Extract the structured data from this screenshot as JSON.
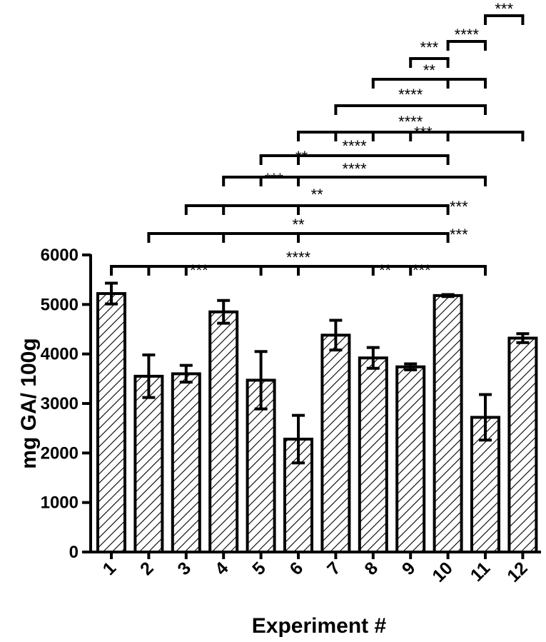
{
  "chart_data": {
    "type": "bar",
    "xlabel": "Experiment #",
    "ylabel": "mg GA/ 100g",
    "ylim": [
      0,
      6000
    ],
    "yticks": [
      0,
      1000,
      2000,
      3000,
      4000,
      5000,
      6000
    ],
    "categories": [
      "1",
      "2",
      "3",
      "4",
      "5",
      "6",
      "7",
      "8",
      "9",
      "10",
      "11",
      "12"
    ],
    "values": [
      5220,
      3550,
      3600,
      4850,
      3470,
      2280,
      4380,
      3920,
      3740,
      5180,
      2720,
      4320
    ],
    "errors": [
      210,
      430,
      170,
      230,
      580,
      480,
      300,
      210,
      60,
      20,
      460,
      90
    ],
    "bar_fill": "diagonal-hatch",
    "bar_color": "#000000",
    "grid": false,
    "legend": "none",
    "significance": [
      {
        "from": "11",
        "to": "12",
        "stars": "***",
        "ticks": [
          "11",
          "12"
        ]
      },
      {
        "from": "10",
        "to": "11",
        "stars": "****",
        "ticks": [
          "10",
          "11"
        ]
      },
      {
        "from": "9",
        "to": "10",
        "stars": "***",
        "ticks": [
          "9",
          "10"
        ]
      },
      {
        "from": "8",
        "to": "11",
        "stars": "**",
        "ticks": [
          "8",
          "10",
          "11"
        ]
      },
      {
        "from": "7",
        "to": "11",
        "stars": "****",
        "ticks": [
          "7",
          "11"
        ]
      },
      {
        "from": "6",
        "to": "12",
        "stars": "****",
        "ticks": [
          "6",
          "7",
          "8",
          "9",
          "10",
          "12"
        ]
      },
      {
        "from": "5",
        "to": "10",
        "stars": "****",
        "ticks": [
          "5",
          "6",
          "10"
        ]
      },
      {
        "from": "4",
        "to": "11",
        "stars": "****",
        "ticks": [
          "4",
          "5",
          "6",
          "11"
        ]
      },
      {
        "from": "3",
        "to": "10",
        "stars": "**",
        "ticks": [
          "3",
          "4",
          "6",
          "10"
        ]
      },
      {
        "from": "2",
        "to": "10",
        "stars": "**",
        "ticks": [
          "2",
          "4",
          "6",
          "10"
        ]
      },
      {
        "from": "1",
        "to": "11",
        "stars": "****",
        "ticks": [
          "1",
          "2",
          "3",
          "5",
          "6",
          "8",
          "9",
          "11"
        ]
      }
    ],
    "side_labels": [
      {
        "bar": "9",
        "text": "***",
        "bracket": "6–12"
      },
      {
        "bar": "6",
        "text": "**",
        "bracket": "5–10"
      },
      {
        "bar": "5",
        "text": "***",
        "bracket": "4–11"
      },
      {
        "bar": "10",
        "text": "***",
        "bracket": "3–10"
      },
      {
        "bar": "10",
        "text": "***",
        "bracket": "2–10"
      },
      {
        "bar": "3",
        "text": "***",
        "bracket": "1–11"
      },
      {
        "bar": "8",
        "text": "**",
        "bracket": "1–11"
      },
      {
        "bar": "9",
        "text": "***",
        "bracket": "1–11"
      }
    ]
  }
}
